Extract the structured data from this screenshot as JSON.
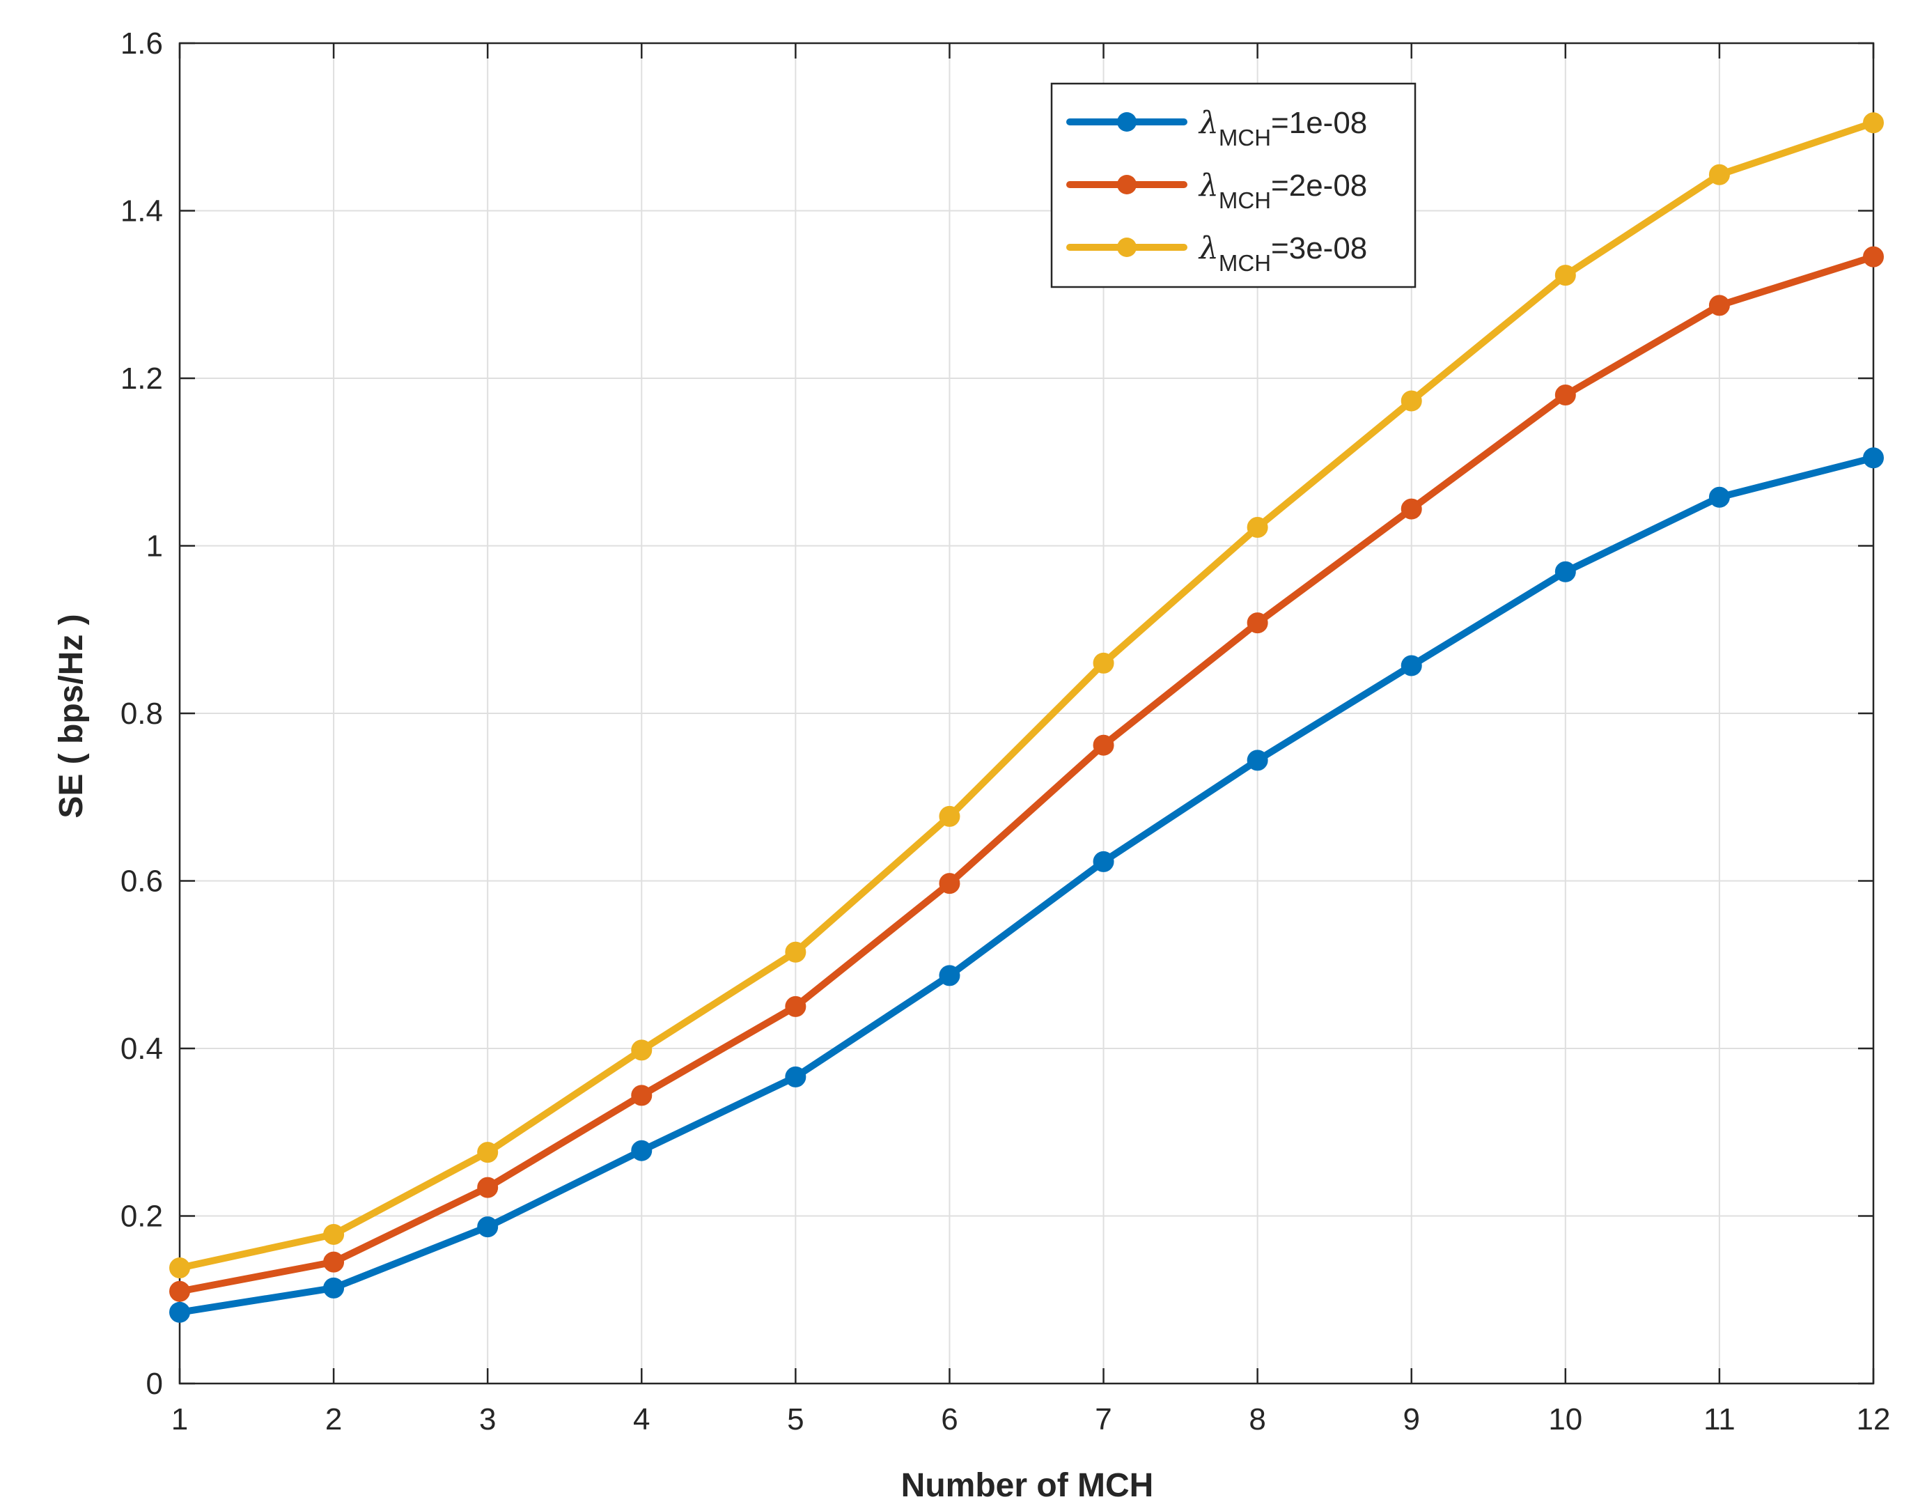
{
  "chart_data": {
    "type": "line",
    "title": "",
    "xlabel": "Number of MCH",
    "ylabel": "SE ( bps/Hz )",
    "xlim": [
      1,
      12
    ],
    "ylim": [
      0,
      1.6
    ],
    "grid": true,
    "legend_position": "top-right",
    "x": [
      1,
      2,
      3,
      4,
      5,
      6,
      7,
      8,
      9,
      10,
      11,
      12
    ],
    "x_ticks": [
      1,
      2,
      3,
      4,
      5,
      6,
      7,
      8,
      9,
      10,
      11,
      12
    ],
    "y_ticks": [
      0,
      0.2,
      0.4,
      0.6,
      0.8,
      1.0,
      1.2,
      1.4,
      1.6
    ],
    "x_tick_labels": [
      "1",
      "2",
      "3",
      "4",
      "5",
      "6",
      "7",
      "8",
      "9",
      "10",
      "11",
      "12"
    ],
    "y_tick_labels": [
      "0",
      "0.2",
      "0.4",
      "0.6",
      "0.8",
      "1",
      "1.2",
      "1.4",
      "1.6"
    ],
    "series": [
      {
        "name": "λMCH=1e-08",
        "symbol": "λ",
        "subscript": "MCH",
        "value_text": "=1e-08",
        "color": "#0072BD",
        "values": [
          0.085,
          0.114,
          0.187,
          0.278,
          0.366,
          0.487,
          0.623,
          0.744,
          0.857,
          0.969,
          1.058,
          1.105
        ]
      },
      {
        "name": "λMCH=2e-08",
        "symbol": "λ",
        "subscript": "MCH",
        "value_text": "=2e-08",
        "color": "#D95319",
        "values": [
          0.11,
          0.145,
          0.234,
          0.344,
          0.45,
          0.597,
          0.762,
          0.908,
          1.044,
          1.18,
          1.287,
          1.345
        ]
      },
      {
        "name": "λMCH=3e-08",
        "symbol": "λ",
        "subscript": "MCH",
        "value_text": "=3e-08",
        "color": "#EDB120",
        "values": [
          0.138,
          0.178,
          0.276,
          0.398,
          0.515,
          0.677,
          0.86,
          1.022,
          1.173,
          1.323,
          1.443,
          1.505
        ]
      }
    ]
  }
}
